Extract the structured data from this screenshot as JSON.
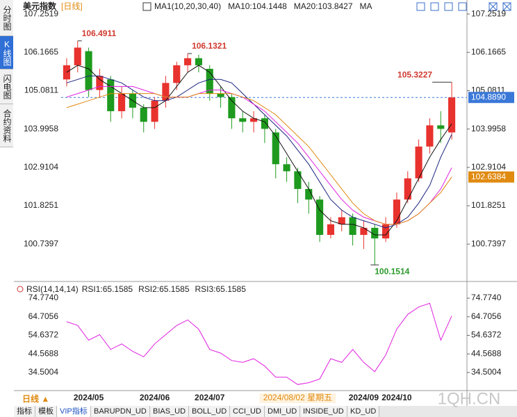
{
  "ui": {
    "side_tabs": [
      "分时图",
      "K线图",
      "闪电图",
      "合约资料"
    ],
    "bottom_tabs": [
      "指标",
      "模板",
      "VIP指标",
      "BARUPDN_UD",
      "BIAS_UD",
      "BOLL_UD",
      "CCI_UD",
      "DMI_UD",
      "INSIDE_UD",
      "KD_UD"
    ],
    "period": "日线 ▲",
    "watermark": "1QH.CN"
  },
  "chart_data": [
    {
      "type": "candlestick",
      "title": "美元指数",
      "subtitle": "[日线]",
      "legend": [
        "MA1(10,20,30,40)",
        "MA10:104.1448",
        "MA20:103.8427",
        "MA"
      ],
      "categories": [
        null,
        null,
        "2024/05",
        null,
        null,
        null,
        null,
        null,
        "2024/06",
        null,
        null,
        null,
        null,
        "2024/07",
        null,
        null,
        null,
        null,
        null,
        null,
        null,
        "2024/08/02 星期五",
        null,
        null,
        null,
        null,
        null,
        "2024/09",
        null,
        null,
        "2024/10",
        null,
        null,
        null,
        null,
        null
      ],
      "open": [
        105.4,
        105.8,
        106.2,
        105.1,
        105.4,
        104.5,
        105.0,
        104.6,
        104.2,
        104.8,
        105.3,
        105.8,
        106.0,
        105.7,
        105.0,
        104.9,
        104.3,
        104.2,
        104.3,
        103.9,
        103.0,
        102.8,
        102.3,
        102.0,
        101.0,
        101.3,
        101.5,
        101.0,
        101.2,
        100.9,
        101.3,
        102.0,
        102.6,
        103.5,
        104.1,
        103.9
      ],
      "high": [
        106.0,
        106.4911,
        106.3,
        105.7,
        105.5,
        105.2,
        105.1,
        104.7,
        104.9,
        105.5,
        105.9,
        106.1321,
        106.1,
        105.8,
        105.2,
        105.0,
        104.5,
        104.5,
        104.4,
        104.0,
        103.2,
        102.9,
        102.5,
        102.1,
        101.5,
        101.7,
        101.6,
        101.4,
        101.3,
        101.5,
        102.2,
        102.8,
        103.7,
        104.3,
        104.5,
        105.3227
      ],
      "low": [
        105.2,
        105.6,
        104.9,
        104.9,
        104.2,
        104.3,
        104.3,
        103.9,
        104.0,
        104.6,
        105.1,
        105.6,
        105.6,
        104.8,
        104.6,
        104.0,
        103.9,
        103.9,
        103.6,
        102.6,
        102.5,
        101.9,
        101.6,
        100.8,
        100.9,
        101.1,
        100.7,
        100.6,
        100.1514,
        100.8,
        101.2,
        101.9,
        102.5,
        103.3,
        103.6,
        103.7
      ],
      "close": [
        105.8,
        106.3,
        105.1,
        105.5,
        104.5,
        105.0,
        104.6,
        104.2,
        104.8,
        105.3,
        105.8,
        106.0,
        105.8,
        105.0,
        104.9,
        104.3,
        104.2,
        104.3,
        104.0,
        103.0,
        102.8,
        102.3,
        102.0,
        101.0,
        101.3,
        101.5,
        101.0,
        101.2,
        100.9,
        101.3,
        102.0,
        102.6,
        103.5,
        104.1,
        104.0,
        104.889
      ],
      "up_color": "#e8322e",
      "down_color": "#1e9a1e",
      "series": [
        {
          "color": "#111111",
          "values": [
            105.6,
            105.8,
            105.7,
            105.4,
            105.2,
            105.0,
            104.8,
            104.6,
            104.6,
            104.8,
            105.2,
            105.6,
            105.8,
            105.6,
            105.2,
            104.8,
            104.5,
            104.3,
            104.2,
            103.8,
            103.3,
            102.8,
            102.3,
            101.7,
            101.4,
            101.3,
            101.3,
            101.2,
            101.0,
            101.0,
            101.4,
            102.0,
            102.6,
            103.2,
            103.7,
            104.1448
          ]
        },
        {
          "color": "#1a237e",
          "values": [
            105.3,
            105.4,
            105.5,
            105.5,
            105.4,
            105.3,
            105.1,
            104.9,
            104.8,
            104.8,
            104.9,
            105.1,
            105.3,
            105.4,
            105.4,
            105.3,
            105.0,
            104.7,
            104.4,
            104.1,
            103.8,
            103.4,
            103.0,
            102.5,
            102.0,
            101.7,
            101.5,
            101.4,
            101.3,
            101.2,
            101.3,
            101.5,
            101.9,
            102.4,
            103.2,
            103.8427
          ]
        },
        {
          "color": "#e020e0",
          "values": [
            104.9,
            105.0,
            105.1,
            105.2,
            105.2,
            105.2,
            105.2,
            105.1,
            105.0,
            104.9,
            104.9,
            104.9,
            105.0,
            105.1,
            105.1,
            105.0,
            104.9,
            104.7,
            104.5,
            104.2,
            103.9,
            103.6,
            103.2,
            102.8,
            102.4,
            102.0,
            101.7,
            101.5,
            101.4,
            101.3,
            101.3,
            101.4,
            101.6,
            101.9,
            102.3,
            102.9
          ]
        },
        {
          "color": "#e08a10",
          "values": [
            104.6,
            104.7,
            104.8,
            104.9,
            105.0,
            105.0,
            105.0,
            105.0,
            105.0,
            104.9,
            104.9,
            104.9,
            105.0,
            105.0,
            105.0,
            105.0,
            104.9,
            104.8,
            104.6,
            104.4,
            104.1,
            103.8,
            103.5,
            103.1,
            102.7,
            102.3,
            101.9,
            101.6,
            101.4,
            101.3,
            101.3,
            101.4,
            101.6,
            101.9,
            102.2,
            102.6384
          ]
        }
      ],
      "ylim": [
        99.78,
        107.49
      ],
      "yticks": [
        107.2519,
        106.1665,
        105.0811,
        103.9958,
        102.9104,
        101.8251,
        100.7397
      ],
      "annotations": [
        {
          "value": 106.4911,
          "label": "106.4911"
        },
        {
          "value": 106.1321,
          "label": "106.1321"
        },
        {
          "value": 105.3227,
          "label": "105.3227"
        },
        {
          "value": 100.1514,
          "label": "100.1514"
        }
      ],
      "last_price": {
        "value": 104.889,
        "label": "104.8890",
        "color": "#3a78d8"
      },
      "ma_label": {
        "value": 102.6384,
        "label": "102.6384",
        "color": "#e08a10"
      }
    },
    {
      "type": "line",
      "title": "RSI(14,14,14)",
      "legend": [
        {
          "text": "RSI1:65.1585",
          "color": "#111111"
        },
        {
          "text": "RSI2:65.1585",
          "color": "#2040c0"
        },
        {
          "text": "RSI3:65.1585",
          "color": "#e020e0"
        }
      ],
      "series": [
        {
          "color": "#e020e0",
          "values": [
            62,
            60,
            52,
            55,
            47,
            50,
            46,
            43,
            50,
            55,
            60,
            63,
            58,
            47,
            45,
            41,
            40,
            42,
            38,
            32,
            32,
            28,
            29,
            31,
            42,
            40,
            47,
            40,
            35,
            44,
            58,
            66,
            70,
            72,
            52,
            65.1585
          ]
        }
      ],
      "ylim": [
        25.47,
        81.93
      ],
      "yticks": [
        {
          "value": 74.774,
          "label": "74.7740"
        },
        64.7056,
        54.6372,
        44.5688,
        34.5004
      ]
    }
  ]
}
